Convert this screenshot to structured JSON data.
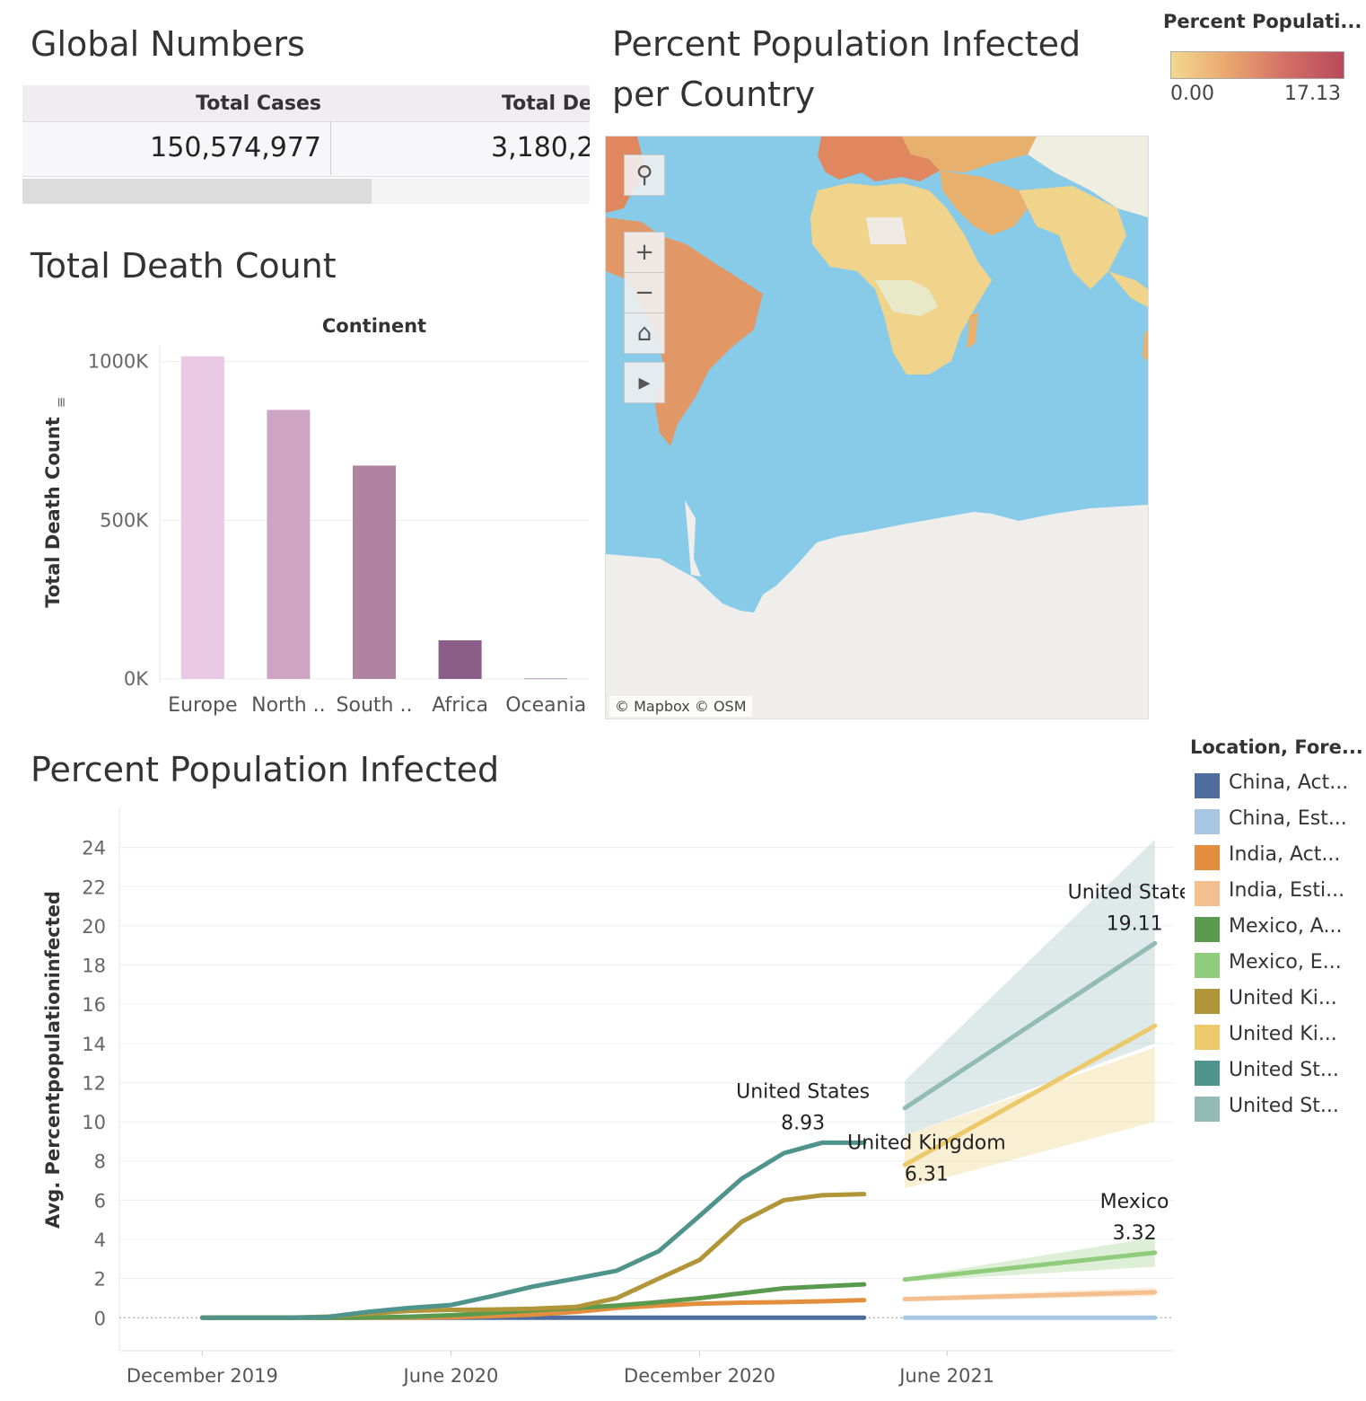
{
  "global_numbers": {
    "title": "Global Numbers",
    "columns": [
      {
        "header": "Total Cases",
        "value": "150,574,977"
      },
      {
        "header": "Total Dea",
        "value": "3,180,2"
      }
    ]
  },
  "map": {
    "title_line1": "Percent Population Infected",
    "title_line2": "per Country",
    "attribution": "© Mapbox  © OSM",
    "tools": [
      "search-icon",
      "zoom-in-icon",
      "zoom-out-icon",
      "home-icon",
      "play-icon"
    ],
    "legend": {
      "title": "Percent Populati...",
      "min": "0.00",
      "max": "17.13",
      "colors": [
        "#f2d88e",
        "#e9a66e",
        "#d36f65",
        "#b84a5b"
      ]
    },
    "colors": {
      "ocean": "#87cbe9",
      "land_high": "#e0875f",
      "land_mid": "#e7b06c",
      "land_low": "#f0d48c",
      "no_data": "#efeae4",
      "ice": "#efeeea"
    }
  },
  "chart_data": [
    {
      "type": "bar",
      "title": "Total Death Count",
      "header": "Continent",
      "ylabel": "Total Death Count",
      "ylim": [
        0,
        1050000
      ],
      "yticks": [
        {
          "v": 0,
          "label": "0K"
        },
        {
          "v": 500000,
          "label": "500K"
        },
        {
          "v": 1000000,
          "label": "1000K"
        }
      ],
      "categories": [
        "Europe",
        "North ..",
        "South ..",
        "Africa",
        "Oceania"
      ],
      "values": [
        1016750,
        847942,
        672415,
        121784,
        1046
      ],
      "colors": [
        "#e8c8e2",
        "#cda5c2",
        "#b083a1",
        "#8a5e88",
        "#6a3f6e"
      ]
    },
    {
      "type": "line",
      "title": "Percent Population Infected",
      "ylabel": "Avg. Percentpopulationinfected",
      "ylim": [
        -1.5,
        26
      ],
      "yticks": [
        0,
        2,
        4,
        6,
        8,
        10,
        12,
        14,
        16,
        18,
        20,
        22,
        24
      ],
      "xticks": [
        {
          "date": "2019-12-01",
          "label": "December 2019"
        },
        {
          "date": "2020-06-01",
          "label": "June 2020"
        },
        {
          "date": "2020-12-01",
          "label": "December 2020"
        },
        {
          "date": "2021-06-01",
          "label": "June 2021"
        }
      ],
      "xlim": [
        "2019-10-01",
        "2021-11-15"
      ],
      "legend_title": "Location, Fore...",
      "series": [
        {
          "name": "China, Act...",
          "color": "#4e6d9c",
          "type": "actual",
          "x": [
            "2019-12-01",
            "2020-01-01",
            "2020-02-01",
            "2020-03-01",
            "2020-04-01",
            "2020-05-01",
            "2020-06-01",
            "2020-07-01",
            "2020-08-01",
            "2020-09-01",
            "2020-10-01",
            "2020-11-01",
            "2020-12-01",
            "2021-01-01",
            "2021-02-01",
            "2021-03-01",
            "2021-04-01"
          ],
          "y": [
            0,
            0,
            0,
            0,
            0,
            0,
            0,
            0,
            0,
            0,
            0,
            0,
            0,
            0,
            0,
            0,
            0
          ]
        },
        {
          "name": "China, Est...",
          "color": "#a8c7e3",
          "type": "forecast",
          "x": [
            "2021-05-01",
            "2021-11-01"
          ],
          "y": [
            0.0,
            0.0
          ],
          "lower": [
            0,
            0
          ],
          "upper": [
            0.05,
            0.05
          ]
        },
        {
          "name": "India, Act...",
          "color": "#e38e3e",
          "type": "actual",
          "x": [
            "2019-12-01",
            "2020-01-01",
            "2020-02-01",
            "2020-03-01",
            "2020-04-01",
            "2020-05-01",
            "2020-06-01",
            "2020-07-01",
            "2020-08-01",
            "2020-09-01",
            "2020-10-01",
            "2020-11-01",
            "2020-12-01",
            "2021-01-01",
            "2021-02-01",
            "2021-03-01",
            "2021-04-01"
          ],
          "y": [
            0,
            0,
            0,
            0,
            0,
            0.01,
            0.03,
            0.08,
            0.16,
            0.3,
            0.5,
            0.62,
            0.72,
            0.77,
            0.8,
            0.84,
            0.9
          ]
        },
        {
          "name": "India, Esti...",
          "color": "#f4bf8f",
          "type": "forecast",
          "x": [
            "2021-05-01",
            "2021-11-01"
          ],
          "y": [
            0.95,
            1.3
          ],
          "lower": [
            0.85,
            1.1
          ],
          "upper": [
            1.05,
            1.55
          ]
        },
        {
          "name": "Mexico, A...",
          "color": "#5a9a4e",
          "type": "actual",
          "x": [
            "2019-12-01",
            "2020-01-01",
            "2020-02-01",
            "2020-03-01",
            "2020-04-01",
            "2020-05-01",
            "2020-06-01",
            "2020-07-01",
            "2020-08-01",
            "2020-09-01",
            "2020-10-01",
            "2020-11-01",
            "2020-12-01",
            "2021-01-01",
            "2021-02-01",
            "2021-03-01",
            "2021-04-01"
          ],
          "y": [
            0,
            0,
            0,
            0,
            0.01,
            0.05,
            0.13,
            0.24,
            0.38,
            0.5,
            0.62,
            0.8,
            1.0,
            1.25,
            1.5,
            1.6,
            1.7
          ]
        },
        {
          "name": "Mexico, E...",
          "color": "#8fcc7c",
          "type": "forecast",
          "x": [
            "2021-05-01",
            "2021-11-01"
          ],
          "y": [
            1.95,
            3.32
          ],
          "lower": [
            1.85,
            2.6
          ],
          "upper": [
            2.05,
            4.1
          ]
        },
        {
          "name": "United Ki...",
          "color": "#b19639",
          "type": "actual",
          "x": [
            "2019-12-01",
            "2020-01-01",
            "2020-02-01",
            "2020-03-01",
            "2020-04-01",
            "2020-05-01",
            "2020-06-01",
            "2020-07-01",
            "2020-08-01",
            "2020-09-01",
            "2020-10-01",
            "2020-11-01",
            "2020-12-01",
            "2021-01-01",
            "2021-02-01",
            "2021-03-01",
            "2021-04-01"
          ],
          "y": [
            0,
            0,
            0,
            0.05,
            0.2,
            0.35,
            0.4,
            0.42,
            0.46,
            0.55,
            1.0,
            2.0,
            2.95,
            4.9,
            6.0,
            6.25,
            6.31
          ]
        },
        {
          "name": "United Ki...",
          "color": "#ecc96a",
          "type": "forecast",
          "x": [
            "2021-05-01",
            "2021-11-01"
          ],
          "y": [
            7.8,
            14.9
          ],
          "lower": [
            6.6,
            10.0
          ],
          "upper": [
            9.3,
            13.8
          ]
        },
        {
          "name": "United St...",
          "color": "#4f948c",
          "type": "actual",
          "x": [
            "2019-12-01",
            "2020-01-01",
            "2020-02-01",
            "2020-03-01",
            "2020-04-01",
            "2020-05-01",
            "2020-06-01",
            "2020-07-01",
            "2020-08-01",
            "2020-09-01",
            "2020-10-01",
            "2020-11-01",
            "2020-12-01",
            "2021-01-01",
            "2021-02-01",
            "2021-03-01",
            "2021-04-01"
          ],
          "y": [
            0,
            0,
            0,
            0.03,
            0.3,
            0.5,
            0.65,
            1.1,
            1.6,
            2.0,
            2.4,
            3.4,
            5.2,
            7.1,
            8.4,
            8.93,
            8.93
          ]
        },
        {
          "name": "United St...",
          "color": "#92bbb5",
          "type": "forecast",
          "x": [
            "2021-05-01",
            "2021-11-01"
          ],
          "y": [
            10.7,
            19.11
          ],
          "lower": [
            9.3,
            14.0
          ],
          "upper": [
            12.1,
            24.4
          ]
        }
      ],
      "annotations": [
        {
          "line1": "United States",
          "line2": "8.93",
          "x": "2021-02-15",
          "y": 8.93
        },
        {
          "line1": "United States",
          "line2": "19.11",
          "x": "2021-10-17",
          "y": 19.11
        },
        {
          "line1": "United Kingdom",
          "line2": "6.31",
          "x": "2021-05-17",
          "y": 6.31
        },
        {
          "line1": "Mexico",
          "line2": "3.32",
          "x": "2021-10-17",
          "y": 3.32
        }
      ]
    }
  ]
}
